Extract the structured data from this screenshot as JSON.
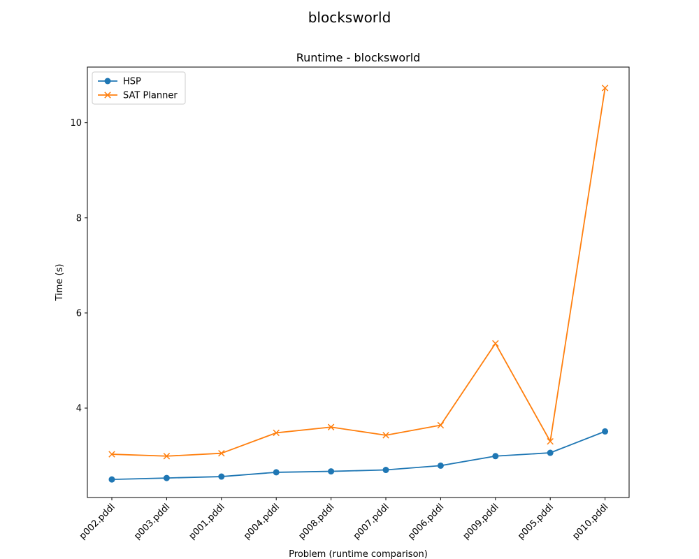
{
  "chart_data": {
    "type": "line",
    "suptitle": "blocksworld",
    "title": "Runtime - blocksworld",
    "xlabel": "Problem (runtime comparison)",
    "ylabel": "Time (s)",
    "categories": [
      "p002.pddl",
      "p003.pddl",
      "p001.pddl",
      "p004.pddl",
      "p008.pddl",
      "p007.pddl",
      "p006.pddl",
      "p009.pddl",
      "p005.pddl",
      "p010.pddl"
    ],
    "ylim": [
      2.12,
      11.17
    ],
    "yticks": [
      4,
      6,
      8,
      10
    ],
    "ytick_labels": [
      "4",
      "6",
      "8",
      "10"
    ],
    "legend_position": "upper-left",
    "series": [
      {
        "name": "HSP",
        "color": "#1f77b4",
        "marker": "circle",
        "values": [
          2.5,
          2.53,
          2.56,
          2.65,
          2.67,
          2.7,
          2.79,
          2.99,
          3.06,
          3.51
        ]
      },
      {
        "name": "SAT Planner",
        "color": "#ff7f0e",
        "marker": "x",
        "values": [
          3.03,
          2.99,
          3.05,
          3.48,
          3.6,
          3.43,
          3.64,
          5.36,
          3.3,
          10.73
        ]
      }
    ]
  }
}
